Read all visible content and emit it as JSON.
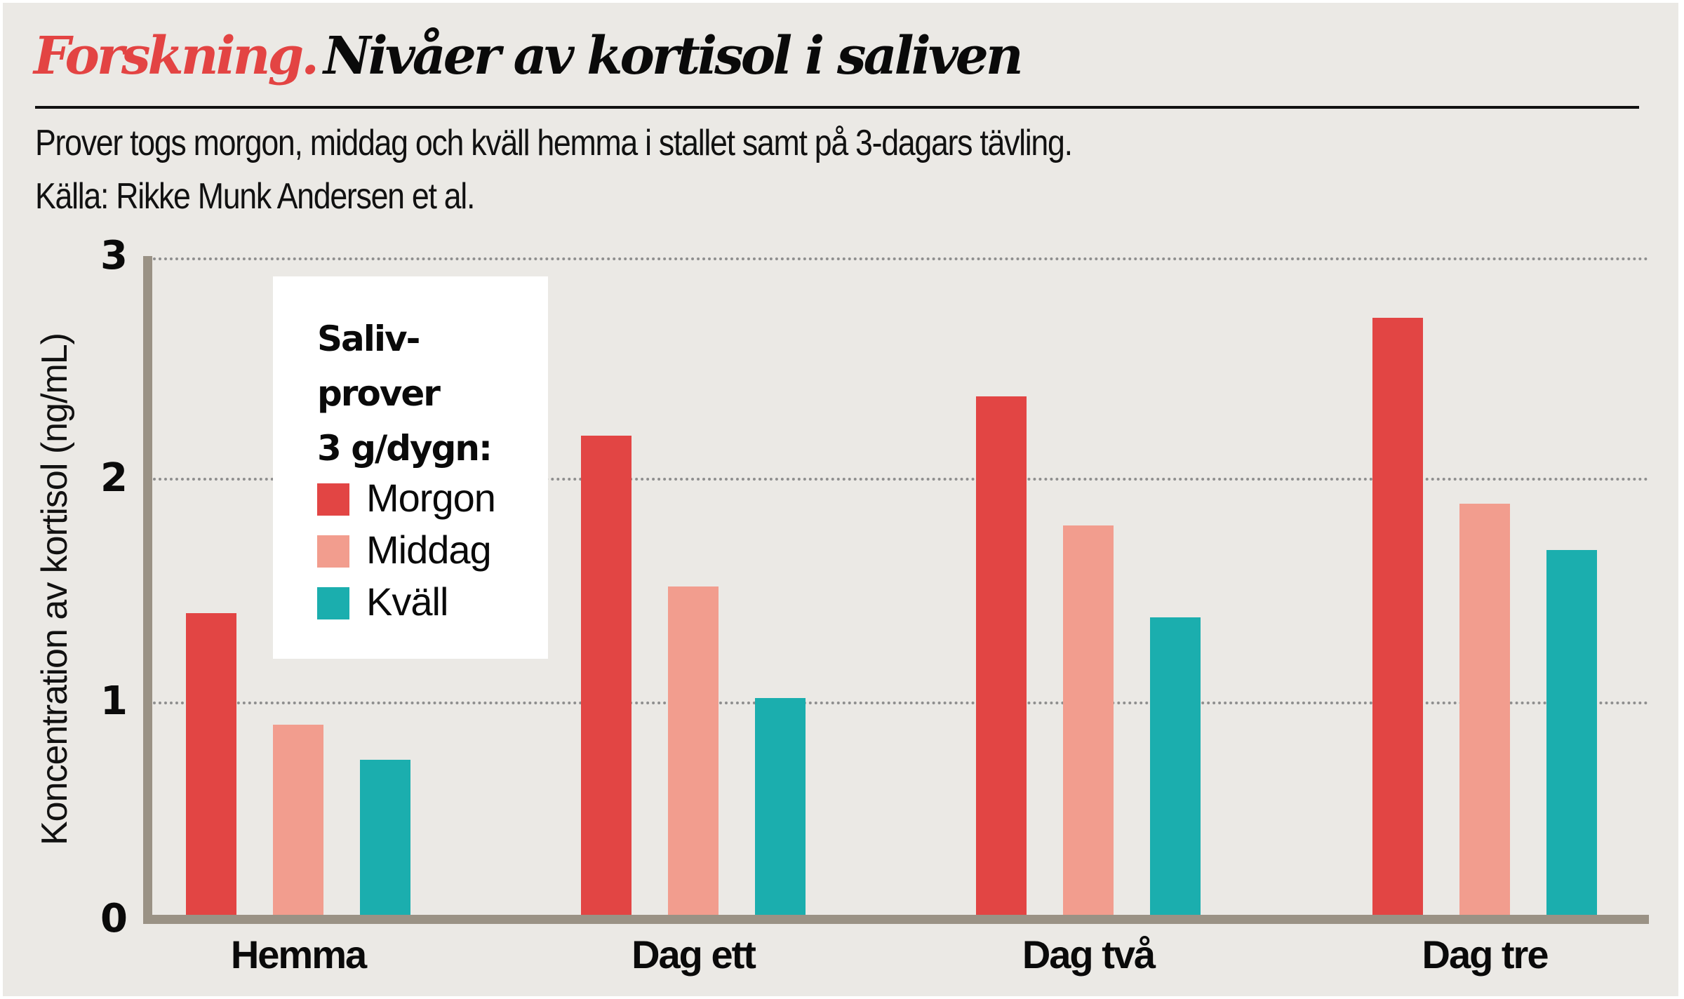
{
  "header": {
    "kicker": "Forskning.",
    "headline": "Nivåer av kortisol i saliven",
    "subtitle_line1": "Prover togs morgon, middag och kväll hemma i stallet samt på 3-dagars tävling.",
    "subtitle_line2": "Källa: Rikke Munk Andersen et al."
  },
  "colors": {
    "background": "#ebe9e5",
    "kicker": "#e34443",
    "axis": "#9a9285",
    "grid": "#8e8e8e",
    "morgon": "#e24544",
    "middag": "#f29d8e",
    "kvall": "#1baeae"
  },
  "legend": {
    "title_line1": "Saliv-",
    "title_line2": "prover",
    "title_line3": "3 g/dygn:",
    "items": [
      {
        "label": "Morgon",
        "color": "#e24544"
      },
      {
        "label": "Middag",
        "color": "#f29d8e"
      },
      {
        "label": "Kväll",
        "color": "#1baeae"
      }
    ]
  },
  "axes": {
    "ylabel": "Koncentration av kortisol (ng/mL)",
    "yticks": [
      "0",
      "1",
      "2",
      "3"
    ],
    "xlabels": [
      "Hemma",
      "Dag ett",
      "Dag två",
      "Dag tre"
    ]
  },
  "chart_data": {
    "type": "bar",
    "title": "Forskning. Nivåer av kortisol i saliven",
    "subtitle": "Prover togs morgon, middag och kväll hemma i stallet samt på 3-dagars tävling. Källa: Rikke Munk Andersen et al.",
    "categories": [
      "Hemma",
      "Dag ett",
      "Dag två",
      "Dag tre"
    ],
    "series": [
      {
        "name": "Morgon",
        "color": "#e24544",
        "values": [
          1.38,
          2.19,
          2.37,
          2.73
        ]
      },
      {
        "name": "Middag",
        "color": "#f29d8e",
        "values": [
          0.87,
          1.5,
          1.78,
          1.88
        ]
      },
      {
        "name": "Kväll",
        "color": "#1baeae",
        "values": [
          0.71,
          0.99,
          1.36,
          1.67
        ]
      }
    ],
    "xlabel": "",
    "ylabel": "Koncentration av kortisol (ng/mL)",
    "ylim": [
      0,
      3
    ],
    "yticks": [
      0,
      1,
      2,
      3
    ],
    "grid": "horizontal dotted",
    "legend_title": "Saliv-prover 3 g/dygn:",
    "legend_position": "upper-left inside plot"
  }
}
